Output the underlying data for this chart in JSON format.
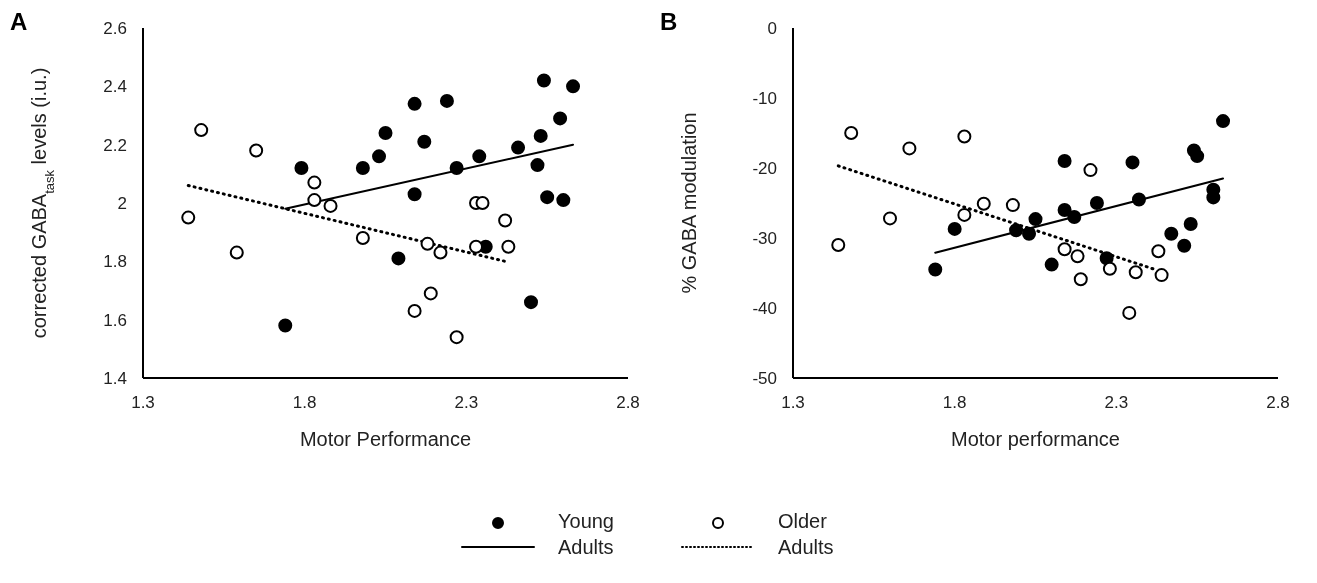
{
  "chart_data": [
    {
      "type": "scatter",
      "title": "A",
      "xlabel": "Motor Performance",
      "ylabel": "corrected GABA$_{task}$ levels (i.u.)",
      "xlim": [
        1.3,
        2.8
      ],
      "xticks": [
        1.3,
        1.8,
        2.3,
        2.8
      ],
      "ylim": [
        1.4,
        2.6
      ],
      "yticks": [
        1.4,
        1.6,
        1.8,
        2,
        2.2,
        2.4,
        2.6
      ],
      "grid": false,
      "legend": "bottom",
      "series": [
        {
          "name": "Young Adults",
          "type": "scatter",
          "marker": "circle",
          "color": "#000000",
          "x": [
            1.74,
            1.79,
            1.98,
            2.03,
            2.05,
            2.09,
            2.14,
            2.17,
            2.14,
            2.24,
            2.27,
            2.34,
            2.36,
            2.46,
            2.5,
            2.53,
            2.52,
            2.54,
            2.55,
            2.6,
            2.59,
            2.63
          ],
          "values": [
            1.58,
            2.12,
            2.12,
            2.16,
            2.24,
            1.81,
            2.34,
            2.21,
            2.03,
            2.35,
            2.12,
            2.16,
            1.85,
            2.19,
            1.66,
            2.23,
            2.13,
            2.42,
            2.02,
            2.01,
            2.29,
            2.4
          ]
        },
        {
          "type": "line",
          "color": "#000000",
          "line_style": "solid",
          "x": [
            1.74,
            2.63
          ],
          "values": [
            1.98,
            2.2
          ]
        },
        {
          "name": "Older Adults",
          "type": "scatter",
          "marker": "circle",
          "color": "#ffffff",
          "x": [
            1.48,
            1.44,
            1.65,
            1.59,
            1.83,
            1.83,
            1.88,
            1.98,
            2.18,
            2.22,
            2.14,
            2.19,
            2.27,
            2.33,
            2.35,
            2.33,
            2.42,
            2.43
          ],
          "values": [
            2.25,
            1.95,
            2.18,
            1.83,
            2.07,
            2.01,
            1.99,
            1.88,
            1.86,
            1.83,
            1.63,
            1.69,
            1.54,
            2,
            2,
            1.85,
            1.94,
            1.85
          ]
        },
        {
          "type": "line",
          "color": "#000000",
          "line_style": "dotted",
          "x": [
            1.44,
            2.42
          ],
          "values": [
            2.06,
            1.8
          ]
        }
      ]
    },
    {
      "type": "scatter",
      "title": "B",
      "xlabel": "Motor performance",
      "ylabel": "% GABA modulation",
      "xlim": [
        1.3,
        2.8
      ],
      "xticks": [
        1.3,
        1.8,
        2.3,
        2.8
      ],
      "ylim": [
        -50,
        0
      ],
      "yticks": [
        -50,
        -40,
        -30,
        -20,
        -10,
        0
      ],
      "grid": false,
      "series": [
        {
          "type": "scatter",
          "marker": "circle",
          "color": "#000000",
          "x": [
            1.74,
            1.8,
            1.99,
            2.03,
            2.05,
            2.1,
            2.14,
            2.14,
            2.17,
            2.24,
            2.27,
            2.35,
            2.37,
            2.47,
            2.51,
            2.53,
            2.54,
            2.55,
            2.6,
            2.6,
            2.63
          ],
          "values": [
            -34.5,
            -28.7,
            -28.9,
            -29.4,
            -27.3,
            -33.8,
            -26,
            -19,
            -27,
            -25,
            -32.9,
            -19.2,
            -24.5,
            -29.4,
            -31.1,
            -28,
            -17.5,
            -18.3,
            -23.1,
            -24.2,
            -13.3
          ]
        },
        {
          "type": "line",
          "color": "#000000",
          "line_style": "solid",
          "x": [
            1.74,
            2.63
          ],
          "values": [
            -32.1,
            -21.5
          ]
        },
        {
          "type": "scatter",
          "marker": "circle",
          "color": "#ffffff",
          "x": [
            1.44,
            1.48,
            1.6,
            1.66,
            1.83,
            1.83,
            1.89,
            1.98,
            2.14,
            2.18,
            2.22,
            2.19,
            2.28,
            2.34,
            2.36,
            2.43,
            2.44
          ],
          "values": [
            -31,
            -15,
            -27.2,
            -17.2,
            -15.5,
            -26.7,
            -25.1,
            -25.3,
            -31.6,
            -32.6,
            -20.3,
            -35.9,
            -34.4,
            -40.7,
            -34.9,
            -31.9,
            -35.3
          ]
        },
        {
          "type": "line",
          "color": "#000000",
          "line_style": "dotted",
          "x": [
            1.44,
            2.42
          ],
          "values": [
            -19.7,
            -34.5
          ]
        }
      ]
    }
  ]
}
